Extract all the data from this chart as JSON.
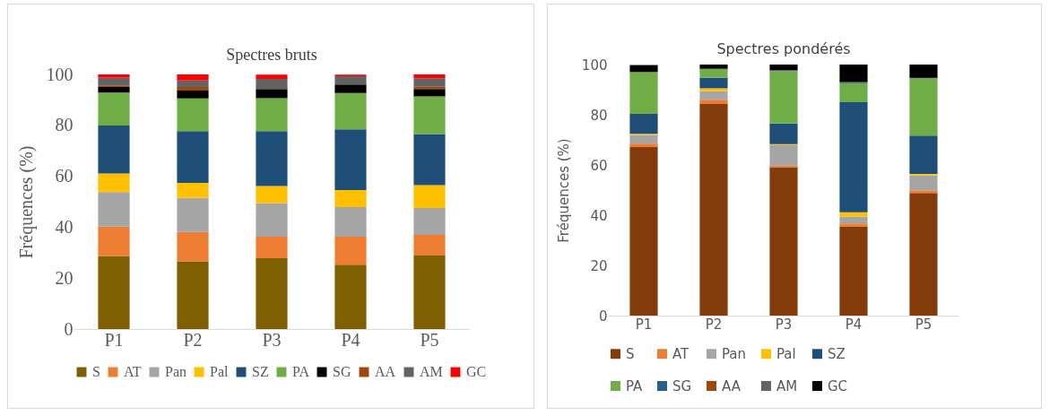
{
  "chart_data": [
    {
      "type": "bar",
      "title": "Spectres bruts",
      "ylabel": "Fréquences (%)",
      "categories": [
        "P1",
        "P2",
        "P3",
        "P4",
        "P5"
      ],
      "stacked": true,
      "ylim": [
        0,
        100
      ],
      "yticks": [
        0,
        20,
        40,
        60,
        80,
        100
      ],
      "legend": "bottom",
      "series": [
        {
          "name": "S",
          "color": "#7f6000",
          "values": [
            28.6,
            26.6,
            27.8,
            25.3,
            28.9
          ]
        },
        {
          "name": "AT",
          "color": "#ed7d31",
          "values": [
            11.6,
            11.5,
            8.5,
            11.0,
            8.1
          ]
        },
        {
          "name": "Pan",
          "color": "#a5a5a5",
          "values": [
            13.6,
            13.4,
            13.2,
            11.6,
            10.5
          ]
        },
        {
          "name": "Pal",
          "color": "#ffc000",
          "values": [
            7.3,
            5.9,
            6.7,
            6.7,
            9.0
          ]
        },
        {
          "name": "SZ",
          "color": "#1f4e79",
          "values": [
            18.8,
            20.3,
            21.5,
            23.8,
            20.1
          ]
        },
        {
          "name": "PA",
          "color": "#70ad47",
          "values": [
            13.0,
            12.9,
            13.0,
            14.3,
            14.8
          ]
        },
        {
          "name": "SG",
          "color": "#000000",
          "values": [
            2.2,
            3.1,
            3.6,
            3.3,
            2.9
          ]
        },
        {
          "name": "AA",
          "color": "#9e480e",
          "values": [
            0.6,
            1.4,
            null,
            null,
            0.9
          ]
        },
        {
          "name": "AM",
          "color": "#636363",
          "values": [
            3.0,
            2.5,
            3.9,
            3.3,
            3.3
          ]
        },
        {
          "name": "GC",
          "color": "#ff0000",
          "values": [
            1.3,
            2.4,
            1.7,
            0.6,
            1.5
          ]
        }
      ]
    },
    {
      "type": "bar",
      "title": "Spectres pondérés",
      "ylabel": "Fréquences (%)",
      "categories": [
        "P1",
        "P2",
        "P3",
        "P4",
        "P5"
      ],
      "stacked": true,
      "ylim": [
        0,
        100
      ],
      "yticks": [
        0,
        20,
        40,
        60,
        80,
        100
      ],
      "legend": "bottom",
      "series": [
        {
          "name": "S",
          "color": "#843c0c",
          "values": [
            67.1,
            84.3,
            59.1,
            35.5,
            48.8
          ]
        },
        {
          "name": "AT",
          "color": "#ed7d31",
          "values": [
            1.4,
            1.7,
            0.6,
            1.2,
            1.1
          ]
        },
        {
          "name": "Pan",
          "color": "#a5a5a5",
          "values": [
            3.4,
            3.4,
            8.2,
            2.7,
            5.9
          ]
        },
        {
          "name": "Pal",
          "color": "#ffc000",
          "values": [
            0.5,
            1.1,
            0.4,
            1.8,
            0.6
          ]
        },
        {
          "name": "SZ",
          "color": "#1f4e79",
          "values": [
            8.0,
            4.2,
            8.2,
            43.8,
            15.3
          ]
        },
        {
          "name": "PA",
          "color": "#70ad47",
          "values": [
            16.6,
            3.6,
            20.9,
            7.6,
            22.7
          ]
        },
        {
          "name": "SG",
          "color": "#255e91",
          "values": [
            0,
            0,
            0,
            0.4,
            0
          ]
        },
        {
          "name": "AA",
          "color": "#9e480e",
          "values": [
            0,
            0,
            0,
            0,
            0
          ]
        },
        {
          "name": "AM",
          "color": "#636363",
          "values": [
            null,
            0,
            0.3,
            0,
            0.3
          ]
        },
        {
          "name": "GC",
          "color": "#000000",
          "values": [
            2.8,
            1.7,
            2.3,
            7.0,
            5.3
          ]
        }
      ]
    }
  ]
}
